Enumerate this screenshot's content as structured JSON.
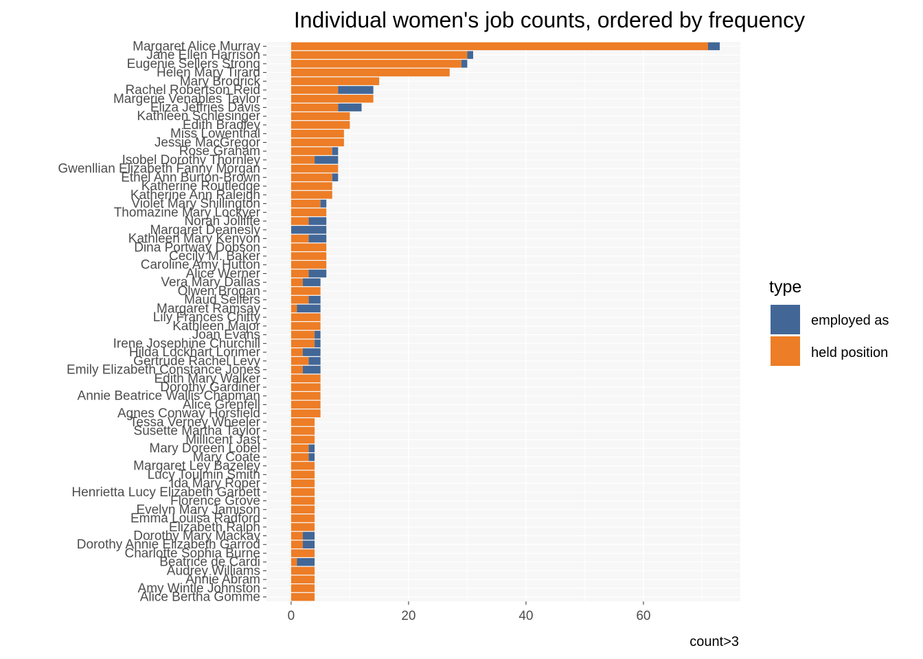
{
  "chart_data": {
    "type": "bar",
    "orientation": "horizontal",
    "stacked": true,
    "title": "Individual women's job counts, ordered by frequency",
    "subtitle": "",
    "xlabel": "count>3",
    "ylabel": "",
    "xlim": [
      -4.2,
      76.5
    ],
    "x_ticks": [
      0,
      20,
      40,
      60
    ],
    "grid": true,
    "legend": {
      "title": "type",
      "position": "right"
    },
    "categories": [
      "Margaret Alice Murray",
      "Jane Ellen Harrison",
      "Eugenie Sellers Strong",
      "Helen Mary Tirard",
      "Mary Brodrick",
      "Rachel Robertson Reid",
      "Margerie Venables Taylor",
      "Eliza Jeffries Davis",
      "Kathleen Schlesinger",
      "Edith Bradley",
      "Miss Lowenthal",
      "Jessie MacGregor",
      "Rose Graham",
      "Isobel Dorothy Thornley",
      "Gwenllian Elizabeth Fanny Morgan",
      "Ethel Ann Burton-Brown",
      "Katherine Routledge",
      "Katherine Ann Raleigh",
      "Violet Mary Shillington",
      "Thomazine Mary Lockyer",
      "Norah Jolliffe",
      "Margaret Deanesly",
      "Kathleen Mary Kenyon",
      "Dina Portway Dobson",
      "Cecily M. Baker",
      "Caroline Amy Hutton",
      "Alice Werner",
      "Vera Mary Dallas",
      "Olwen Brogan",
      "Maud Sellers",
      "Margaret Ramsay",
      "Lily Frances Chitty",
      "Kathleen Major",
      "Joan Evans",
      "Irene Josephine Churchill",
      "Hilda Lockhart Lorimer",
      "Gertrude Rachel Levy",
      "Emily Elizabeth Constance Jones",
      "Edith Mary Walker",
      "Dorothy Gardiner",
      "Annie Beatrice Wallis Chapman",
      "Alice Grenfell",
      "Agnes Conway Horsfield",
      "Tessa Verney Wheeler",
      "Susette Martha Taylor",
      "Millicent Jast",
      "Mary Doreen Lobel",
      "Mary Coate",
      "Margaret Ley Bazeley",
      "Lucy Toulmin Smith",
      "Ida Mary Roper",
      "Henrietta Lucy Elizabeth Garbett",
      "Florence Grove",
      "Evelyn Mary Jamison",
      "Emma Louisa Radford",
      "Elizabeth Ralph",
      "Dorothy Mary Mackay",
      "Dorothy Annie Elizabeth Garrod",
      "Charlotte Sophia Burne",
      "Beatrice de Cardi",
      "Audrey Williams",
      "Annie Abram",
      "Amy Wintle Johnston",
      "Alice Bertha Gomme"
    ],
    "series": [
      {
        "name": "held position",
        "color": "#ED7D26",
        "values": [
          71,
          30,
          29,
          27,
          15,
          8,
          14,
          8,
          10,
          10,
          9,
          9,
          7,
          4,
          8,
          7,
          7,
          7,
          5,
          6,
          3,
          0,
          3,
          6,
          6,
          6,
          3,
          2,
          5,
          3,
          1,
          5,
          5,
          4,
          4,
          2,
          3,
          2,
          5,
          5,
          5,
          5,
          5,
          4,
          4,
          4,
          3,
          3,
          4,
          4,
          4,
          4,
          4,
          4,
          4,
          4,
          2,
          2,
          4,
          1,
          4,
          4,
          4,
          4
        ]
      },
      {
        "name": "employed as",
        "color": "#426797",
        "values": [
          2,
          1,
          1,
          0,
          0,
          6,
          0,
          4,
          0,
          0,
          0,
          0,
          1,
          4,
          0,
          1,
          0,
          0,
          1,
          0,
          3,
          6,
          3,
          0,
          0,
          0,
          3,
          3,
          0,
          2,
          4,
          0,
          0,
          1,
          1,
          3,
          2,
          3,
          0,
          0,
          0,
          0,
          0,
          0,
          0,
          0,
          1,
          1,
          0,
          0,
          0,
          0,
          0,
          0,
          0,
          0,
          2,
          2,
          0,
          3,
          0,
          0,
          0,
          0
        ]
      }
    ],
    "legend_entries": [
      "employed as",
      "held position"
    ],
    "panel_color": "#F7F7F7",
    "grid_color": "#FFFFFF"
  }
}
